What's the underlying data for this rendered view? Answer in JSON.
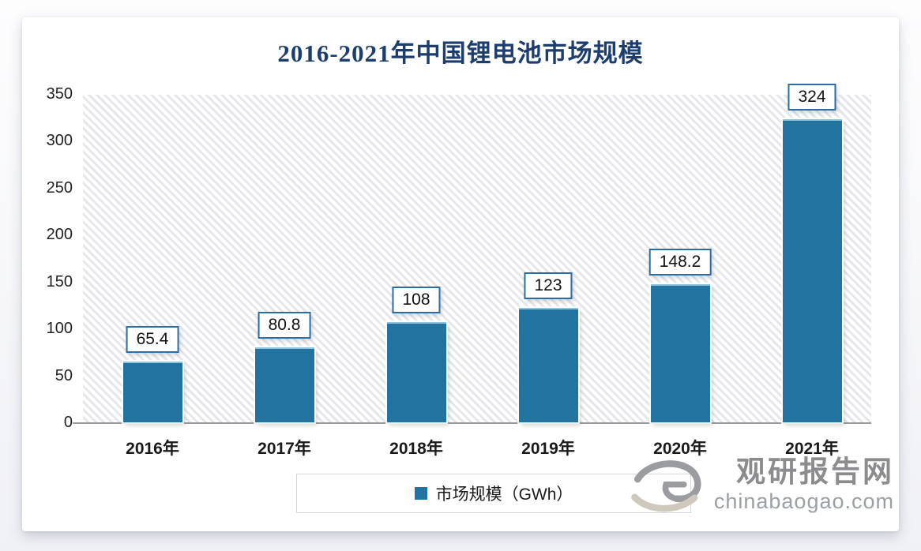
{
  "title": "2016-2021年中国锂电池市场规模",
  "chart_data": {
    "type": "bar",
    "categories": [
      "2016年",
      "2017年",
      "2018年",
      "2019年",
      "2020年",
      "2021年"
    ],
    "values": [
      65.4,
      80.8,
      108,
      123,
      148.2,
      324
    ],
    "title": "2016-2021年中国锂电池市场规模",
    "xlabel": "",
    "ylabel": "",
    "ylim": [
      0,
      350
    ],
    "yticks": [
      0,
      50,
      100,
      150,
      200,
      250,
      300,
      350
    ],
    "grid": false,
    "legend_position": "bottom",
    "legend_entries": [
      "市场规模（GWh）"
    ],
    "background": "diagonal-hatch"
  },
  "legend": {
    "label": "市场规模（GWh）"
  },
  "colors": {
    "bar": "#2273a0",
    "title": "#1c3e6e",
    "label_box_border": "#2a6da5",
    "axis_text": "#212121",
    "watermark_name": "#8c8c8f",
    "watermark_url": "#9aa0a3"
  },
  "watermark": {
    "site_name": "观研报告网",
    "site_url": "chinabaogao.com"
  }
}
